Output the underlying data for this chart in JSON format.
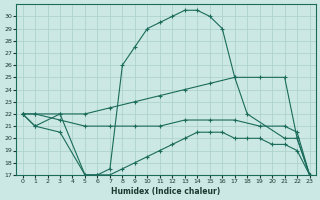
{
  "xlabel": "Humidex (Indice chaleur)",
  "bg_color": "#cce8e4",
  "grid_color": "#aacfca",
  "line_color": "#1a6b5a",
  "xlim": [
    -0.5,
    23.5
  ],
  "ylim": [
    17,
    31
  ],
  "yticks": [
    17,
    18,
    19,
    20,
    21,
    22,
    23,
    24,
    25,
    26,
    27,
    28,
    29,
    30
  ],
  "xticks": [
    0,
    1,
    2,
    3,
    4,
    5,
    6,
    7,
    8,
    9,
    10,
    11,
    12,
    13,
    14,
    15,
    16,
    17,
    18,
    19,
    20,
    21,
    22,
    23
  ],
  "curves": [
    {
      "x": [
        0,
        1,
        3,
        5,
        6,
        7,
        8,
        9,
        10,
        11,
        12,
        13,
        14,
        15,
        16,
        17,
        18,
        21,
        22,
        23
      ],
      "y": [
        22,
        21,
        22,
        17,
        17,
        17.5,
        26,
        27.5,
        29,
        29.5,
        30,
        30.5,
        30.5,
        30,
        29,
        25,
        22,
        20,
        20,
        17
      ]
    },
    {
      "x": [
        0,
        1,
        3,
        5,
        6,
        7,
        8,
        9,
        10,
        11,
        12,
        13,
        14,
        15,
        16,
        17,
        18,
        19,
        20,
        21,
        22,
        23
      ],
      "y": [
        22,
        21,
        20.5,
        17,
        17,
        17,
        17.5,
        18,
        18.5,
        19,
        19.5,
        20,
        20.5,
        20.5,
        20.5,
        20,
        20,
        20,
        19.5,
        19.5,
        19,
        17
      ]
    },
    {
      "x": [
        0,
        1,
        3,
        5,
        7,
        9,
        11,
        13,
        15,
        17,
        19,
        21,
        22,
        23
      ],
      "y": [
        22,
        22,
        22,
        22,
        22.5,
        23,
        23.5,
        24,
        24.5,
        25,
        25,
        25,
        20,
        17
      ]
    },
    {
      "x": [
        0,
        1,
        3,
        5,
        7,
        9,
        11,
        13,
        15,
        17,
        19,
        21,
        22,
        23
      ],
      "y": [
        22,
        22,
        21.5,
        21,
        21,
        21,
        21,
        21.5,
        21.5,
        21.5,
        21,
        21,
        20.5,
        17
      ]
    }
  ]
}
